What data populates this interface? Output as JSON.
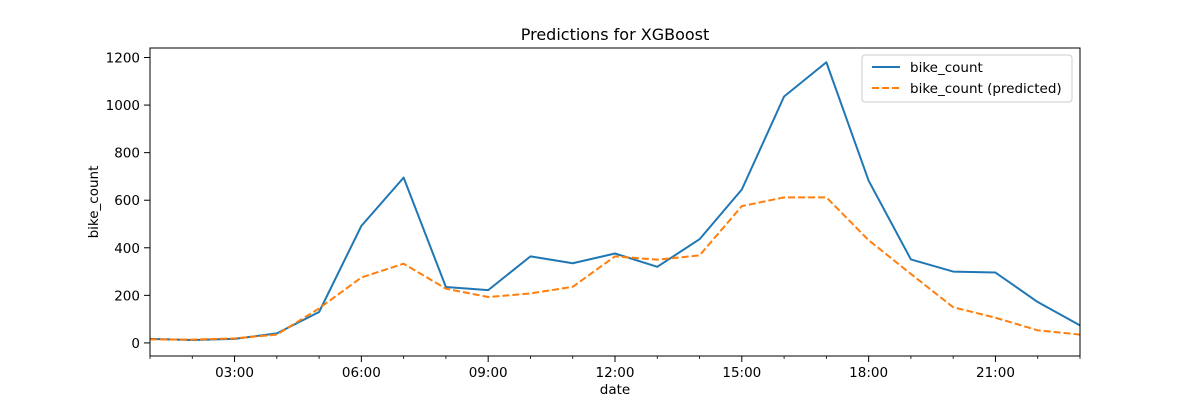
{
  "chart_data": {
    "type": "line",
    "title": "Predictions for XGBoost",
    "xlabel": "date",
    "ylabel": "bike_count",
    "x_hours": [
      1,
      2,
      3,
      4,
      5,
      6,
      7,
      8,
      9,
      10,
      11,
      12,
      13,
      14,
      15,
      16,
      17,
      18,
      19,
      20,
      21,
      22,
      23
    ],
    "x_ticks": [
      "03:00",
      "06:00",
      "09:00",
      "12:00",
      "15:00",
      "18:00",
      "21:00"
    ],
    "x_tick_hours": [
      3,
      6,
      9,
      12,
      15,
      18,
      21
    ],
    "xlim": [
      1,
      23
    ],
    "ylim": [
      -55,
      1240
    ],
    "y_ticks": [
      0,
      200,
      400,
      600,
      800,
      1000,
      1200
    ],
    "grid": false,
    "legend_position": "top-right",
    "series": [
      {
        "name": "bike_count",
        "color": "#1f77b4",
        "style": "solid",
        "values": [
          17,
          12,
          17,
          40,
          130,
          492,
          695,
          235,
          222,
          364,
          335,
          376,
          320,
          436,
          645,
          1036,
          1180,
          682,
          351,
          300,
          296,
          172,
          74
        ]
      },
      {
        "name": "bike_count (predicted)",
        "color": "#ff7f0e",
        "style": "dashed",
        "values": [
          15,
          14,
          19,
          35,
          145,
          275,
          333,
          228,
          193,
          208,
          236,
          364,
          350,
          368,
          575,
          612,
          612,
          432,
          290,
          150,
          106,
          53,
          35
        ]
      }
    ]
  }
}
